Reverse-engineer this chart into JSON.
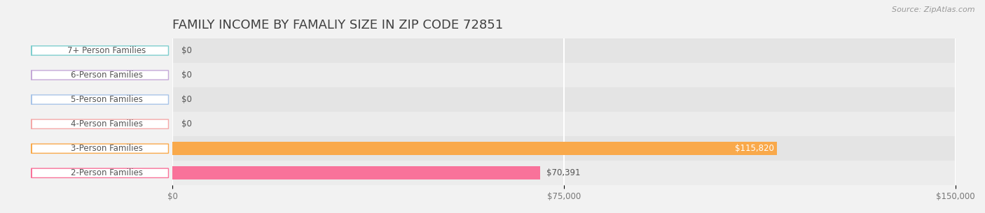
{
  "title": "FAMILY INCOME BY FAMALIY SIZE IN ZIP CODE 72851",
  "source": "Source: ZipAtlas.com",
  "categories": [
    "2-Person Families",
    "3-Person Families",
    "4-Person Families",
    "5-Person Families",
    "6-Person Families",
    "7+ Person Families"
  ],
  "values": [
    70391,
    115820,
    0,
    0,
    0,
    0
  ],
  "bar_colors": [
    "#F9729A",
    "#F9A94B",
    "#F4A8A8",
    "#A8C4E8",
    "#C4A8D8",
    "#7ECECE"
  ],
  "xlim": [
    0,
    150000
  ],
  "xticks": [
    0,
    75000,
    150000
  ],
  "xtick_labels": [
    "$0",
    "$75,000",
    "$150,000"
  ],
  "bar_height": 0.55,
  "background_color": "#F2F2F2",
  "title_fontsize": 13,
  "label_fontsize": 8.5,
  "value_labels": [
    "$70,391",
    "$115,820",
    "$0",
    "$0",
    "$0",
    "$0"
  ],
  "value_label_inside": [
    false,
    true,
    false,
    false,
    false,
    false
  ]
}
